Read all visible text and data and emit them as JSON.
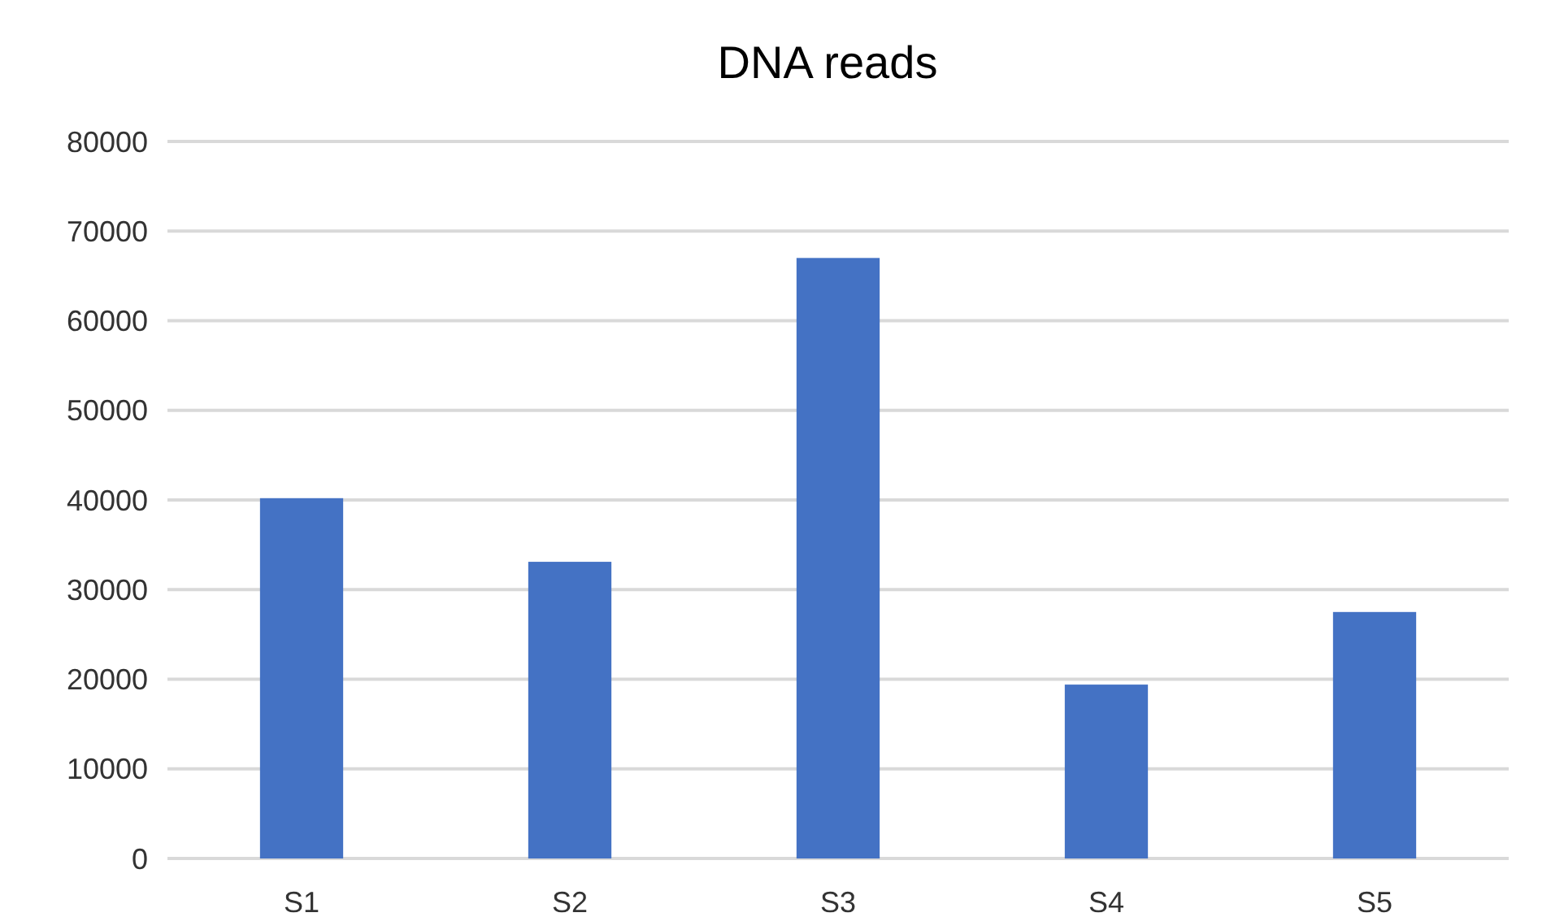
{
  "chart_data": {
    "type": "bar",
    "title": "DNA reads",
    "categories": [
      "S1",
      "S2",
      "S3",
      "S4",
      "S5"
    ],
    "values": [
      40200,
      33100,
      67000,
      19400,
      27500
    ],
    "color": "#4472c4",
    "ylim": [
      0,
      80000
    ],
    "yticks": [
      0,
      10000,
      20000,
      30000,
      40000,
      50000,
      60000,
      70000,
      80000
    ],
    "grid": "y"
  }
}
